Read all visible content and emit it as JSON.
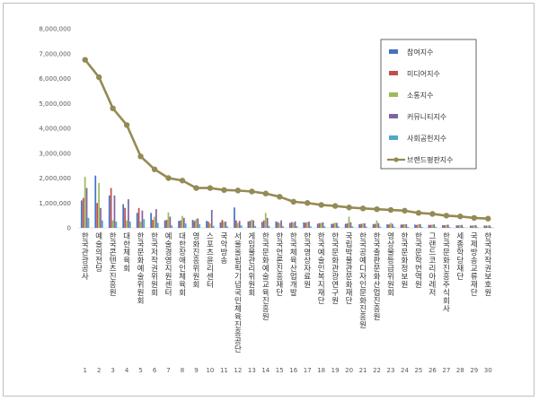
{
  "chart_data": {
    "type": "bar",
    "ylim": [
      0,
      8000000
    ],
    "y_ticks": [
      "0",
      "1,000,000",
      "2,000,000",
      "3,000,000",
      "4,000,000",
      "5,000,000",
      "6,000,000",
      "7,000,000",
      "8,000,000"
    ],
    "grid": false,
    "legend_position": "top-right",
    "categories": [
      "한국관광공사",
      "예술의전당",
      "한국콘텐츠진흥원",
      "대한체육회",
      "한국문화예술위원회",
      "한국저작권위원회",
      "예술경영지원센터",
      "대한장애인체육회",
      "영화진흥위원회",
      "스포츠윤리센터",
      "국악방송",
      "서울올림픽기념국민체육진흥공단",
      "게임물관리위원회",
      "한국문화예술교육진흥원",
      "한국언론진흥재단",
      "한국체육산업개발",
      "한국영상자료원",
      "한국예술인복지재단",
      "한국문화관광연구원",
      "국립박물관문화재단",
      "한국공예디자인문화진흥원",
      "한국출판문화산업진흥원",
      "영상물등급위원회",
      "한국문화정보원",
      "한국문학번역원",
      "그랜드코리아레저",
      "한국문화진흥주식회사",
      "세종학당재단",
      "국제방송교류재단",
      "한국저작권보호원"
    ],
    "ranks": [
      "1",
      "2",
      "3",
      "4",
      "5",
      "6",
      "7",
      "8",
      "9",
      "10",
      "11",
      "12",
      "13",
      "14",
      "15",
      "16",
      "17",
      "18",
      "19",
      "20",
      "21",
      "22",
      "23",
      "24",
      "25",
      "26",
      "27",
      "28",
      "29",
      "30"
    ],
    "series": [
      {
        "name": "참여지수",
        "color": "#4472c4",
        "type": "bar",
        "values": [
          1100000,
          2100000,
          1300000,
          950000,
          600000,
          600000,
          300000,
          280000,
          320000,
          280000,
          220000,
          820000,
          260000,
          240000,
          260000,
          200000,
          220000,
          170000,
          160000,
          160000,
          150000,
          150000,
          140000,
          130000,
          130000,
          120000,
          110000,
          100000,
          90000,
          90000
        ]
      },
      {
        "name": "미디어지수",
        "color": "#c0504d",
        "type": "bar",
        "values": [
          1200000,
          1000000,
          1600000,
          800000,
          800000,
          320000,
          320000,
          300000,
          280000,
          250000,
          320000,
          300000,
          280000,
          300000,
          230000,
          230000,
          210000,
          190000,
          170000,
          180000,
          160000,
          160000,
          140000,
          140000,
          120000,
          120000,
          110000,
          100000,
          90000,
          90000
        ]
      },
      {
        "name": "소통지수",
        "color": "#9bbb59",
        "type": "bar",
        "values": [
          2050000,
          1800000,
          300000,
          300000,
          250000,
          450000,
          620000,
          480000,
          350000,
          180000,
          250000,
          200000,
          330000,
          600000,
          200000,
          210000,
          230000,
          200000,
          210000,
          450000,
          180000,
          300000,
          200000,
          150000,
          150000,
          130000,
          120000,
          110000,
          100000,
          90000
        ]
      },
      {
        "name": "커뮤니티지수",
        "color": "#8064a2",
        "type": "bar",
        "values": [
          1600000,
          800000,
          1300000,
          1150000,
          700000,
          750000,
          450000,
          400000,
          380000,
          720000,
          250000,
          280000,
          300000,
          400000,
          300000,
          260000,
          250000,
          220000,
          200000,
          220000,
          180000,
          190000,
          160000,
          150000,
          150000,
          140000,
          130000,
          120000,
          110000,
          100000
        ]
      },
      {
        "name": "사회공헌지수",
        "color": "#4bacc6",
        "type": "bar",
        "values": [
          400000,
          300000,
          250000,
          250000,
          350000,
          200000,
          100000,
          180000,
          150000,
          80000,
          60000,
          100000,
          80000,
          80000,
          70000,
          70000,
          60000,
          60000,
          60000,
          60000,
          50000,
          50000,
          50000,
          40000,
          40000,
          40000,
          30000,
          30000,
          30000,
          30000
        ]
      },
      {
        "name": "브랜드평판지수",
        "color": "#948a54",
        "type": "line",
        "values": [
          6750000,
          6050000,
          4800000,
          4130000,
          2870000,
          2350000,
          2000000,
          1900000,
          1600000,
          1600000,
          1520000,
          1500000,
          1460000,
          1380000,
          1250000,
          1050000,
          1000000,
          920000,
          880000,
          820000,
          780000,
          750000,
          720000,
          690000,
          600000,
          560000,
          490000,
          460000,
          400000,
          370000
        ]
      }
    ]
  }
}
